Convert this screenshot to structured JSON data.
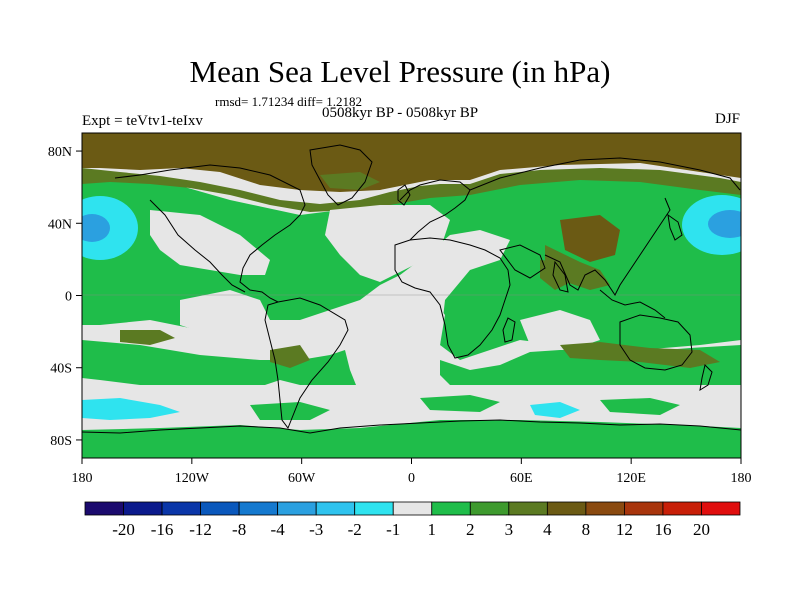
{
  "title": "Mean Sea Level Pressure (in hPa)",
  "stats": "rmsd= 1.71234 diff= 1.2182",
  "experiment": "Expt = teVtv1-teIxv",
  "period": "0508kyr BP - 0508kyr BP",
  "season": "DJF",
  "map": {
    "lon_range": [
      -180,
      180
    ],
    "lat_range": [
      -90,
      90
    ],
    "lon_ticks": [
      {
        "value": -180,
        "label": "180"
      },
      {
        "value": -120,
        "label": "120W"
      },
      {
        "value": -60,
        "label": "60W"
      },
      {
        "value": 0,
        "label": "0"
      },
      {
        "value": 60,
        "label": "60E"
      },
      {
        "value": 120,
        "label": "120E"
      },
      {
        "value": 180,
        "label": "180"
      }
    ],
    "lat_ticks": [
      {
        "value": 80,
        "label": "80N"
      },
      {
        "value": 40,
        "label": "40N"
      },
      {
        "value": 0,
        "label": "0"
      },
      {
        "value": -40,
        "label": "40S"
      },
      {
        "value": -80,
        "label": "80S"
      }
    ]
  },
  "colorbar": {
    "labels": [
      "-20",
      "-16",
      "-12",
      "-8",
      "-4",
      "-3",
      "-2",
      "-1",
      "1",
      "2",
      "3",
      "4",
      "8",
      "12",
      "16",
      "20"
    ],
    "colors": [
      "#1b0a6e",
      "#0b1a8c",
      "#0a36a8",
      "#0a58bc",
      "#1579cf",
      "#2ba0e0",
      "#2fc3ee",
      "#2fe3ef",
      "#e6e6e6",
      "#1fbd4a",
      "#3e9a2e",
      "#5b7a22",
      "#6b5a14",
      "#8a4a10",
      "#a8350c",
      "#c81f08",
      "#e00e0e"
    ]
  },
  "colors": {
    "neutral": "#e6e6e6",
    "green": "#1fbd4a",
    "olive": "#5b7a22",
    "brown": "#6b5a14",
    "cyan": "#2fe3ef",
    "blue": "#2ba0e0"
  }
}
